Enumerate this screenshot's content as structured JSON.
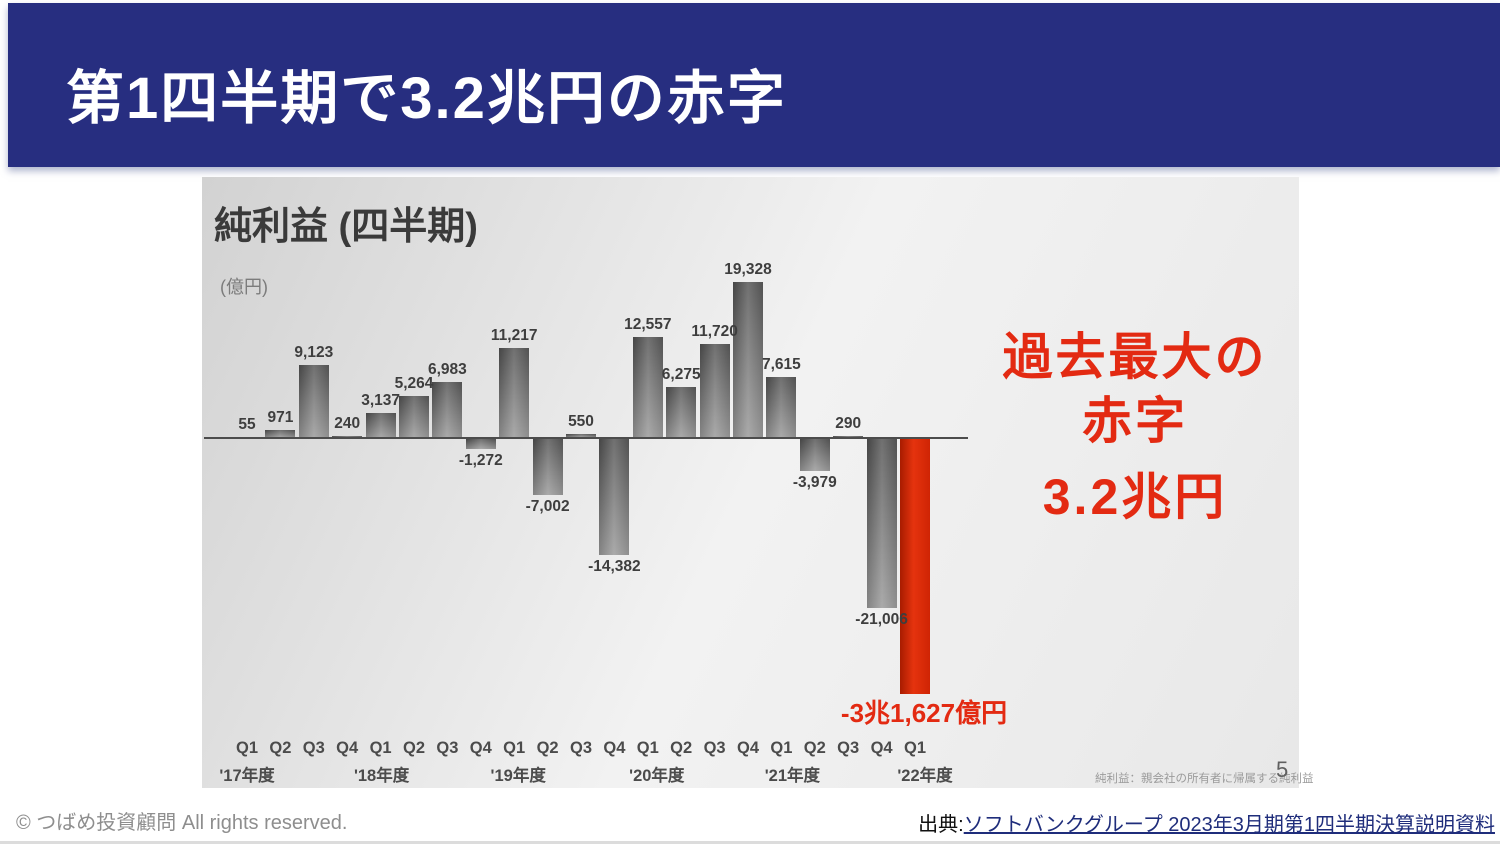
{
  "header": {
    "title": "第1四半期で3.2兆円の赤字",
    "bg_color": "#272e80",
    "text_color": "#ffffff"
  },
  "chart": {
    "title": "純利益 (四半期)",
    "unit_label": "(億円)",
    "callout_lines": [
      "過去最大の",
      "赤字",
      "3.2兆円"
    ],
    "highlight_label": "-3兆1,627億円",
    "footnote": "純利益：親会社の所有者に帰属する純利益",
    "page_number": "5"
  },
  "chart_data": {
    "type": "bar",
    "title": "純利益 (四半期)",
    "unit": "億円",
    "ylim": [
      -32000,
      20000
    ],
    "grid": false,
    "colors": {
      "bar_gray": "#6b6b6b",
      "bar_highlight_red": "#d8250a",
      "accent_red": "#e32a12",
      "axis": "#4c4c4c"
    },
    "bars": [
      {
        "q": "Q1",
        "v": 55,
        "label": "55"
      },
      {
        "q": "Q2",
        "v": 971,
        "label": "971"
      },
      {
        "q": "Q3",
        "v": 9123,
        "label": "9,123"
      },
      {
        "q": "Q4",
        "v": 240,
        "label": "240"
      },
      {
        "q": "Q1",
        "v": 3137,
        "label": "3,137"
      },
      {
        "q": "Q2",
        "v": 5264,
        "label": "5,264"
      },
      {
        "q": "Q3",
        "v": 6983,
        "label": "6,983"
      },
      {
        "q": "Q4",
        "v": -1272,
        "label": "-1,272"
      },
      {
        "q": "Q1",
        "v": 11217,
        "label": "11,217"
      },
      {
        "q": "Q2",
        "v": -7002,
        "label": "-7,002"
      },
      {
        "q": "Q3",
        "v": 550,
        "label": "550"
      },
      {
        "q": "Q4",
        "v": -14382,
        "label": "-14,382"
      },
      {
        "q": "Q1",
        "v": 12557,
        "label": "12,557"
      },
      {
        "q": "Q2",
        "v": 6275,
        "label": "6,275"
      },
      {
        "q": "Q3",
        "v": 11720,
        "label": "11,720"
      },
      {
        "q": "Q4",
        "v": 19328,
        "label": "19,328"
      },
      {
        "q": "Q1",
        "v": 7615,
        "label": "7,615"
      },
      {
        "q": "Q2",
        "v": -3979,
        "label": "-3,979"
      },
      {
        "q": "Q3",
        "v": 290,
        "label": "290"
      },
      {
        "q": "Q4",
        "v": -21006,
        "label": "-21,006"
      },
      {
        "q": "Q1",
        "v": -31627,
        "label": "-3兆1,627億円",
        "highlight": true
      }
    ],
    "years": [
      {
        "label": "'17年度",
        "start": 0,
        "dx": 0
      },
      {
        "label": "'18年度",
        "start": 4,
        "dx": 1
      },
      {
        "label": "'19年度",
        "start": 8,
        "dx": 4
      },
      {
        "label": "'20年度",
        "start": 12,
        "dx": 9
      },
      {
        "label": "'21年度",
        "start": 16,
        "dx": 11
      },
      {
        "label": "'22年度",
        "start": 20,
        "dx": 10
      }
    ]
  },
  "footer": {
    "copyright": "© つばめ投資顧問 All rights reserved.",
    "source_prefix": "出典:",
    "source_link": "ソフトバンクグループ 2023年3月期第1四半期決算説明資料"
  }
}
